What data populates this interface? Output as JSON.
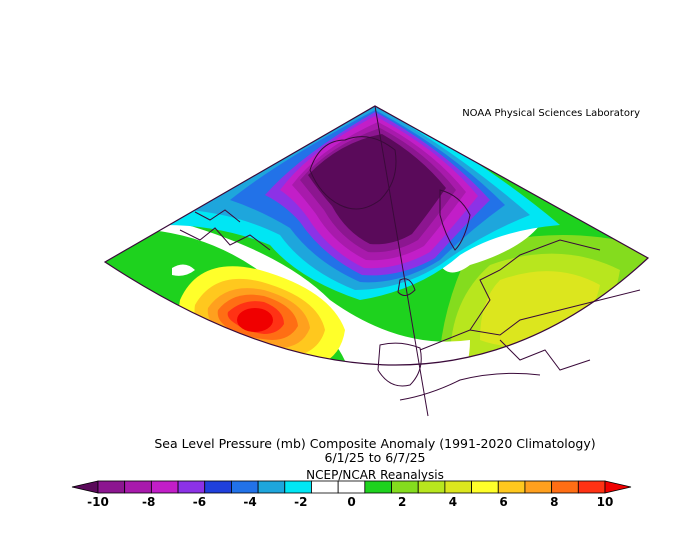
{
  "lab_credit": "NOAA Physical Sciences Laboratory",
  "title": {
    "line1": "Sea Level Pressure (mb) Composite Anomaly (1991-2020 Climatology)",
    "line2": "6/1/25  to 6/7/25",
    "line3": "NCEP/NCAR Reanalysis"
  },
  "colorbar": {
    "tick_labels": [
      "-10",
      "-8",
      "-6",
      "-4",
      "-2",
      "0",
      "2",
      "4",
      "6",
      "8",
      "10"
    ],
    "colors": [
      "#5a0a5a",
      "#8c1690",
      "#a81aac",
      "#c21ec8",
      "#8c32e6",
      "#2040dc",
      "#2272e8",
      "#1ea6dc",
      "#00e6f4",
      "#ffffff",
      "#ffffff",
      "#1ed21e",
      "#84dc1e",
      "#b8e61e",
      "#dce61e",
      "#ffff2a",
      "#ffc81e",
      "#ffa01e",
      "#ff6e14",
      "#ff3214",
      "#f00000"
    ]
  }
}
